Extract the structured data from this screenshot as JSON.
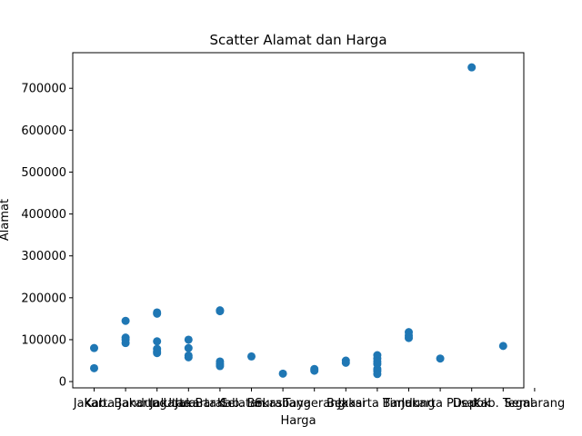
{
  "chart_data": {
    "type": "scatter",
    "title": "Scatter Alamat dan Harga",
    "xlabel": "Harga",
    "ylabel": "Alamat",
    "categories": [
      "Jakarta",
      "Kab. Bandung",
      "Jakarta Utara",
      "Jakarta Barat",
      "Jakarta Selatan",
      "Kab. Bekasi",
      "Surabaya",
      "Tangerang",
      "Bekasi",
      "Jakarta Timur",
      "Bandung",
      "Jakarta Pusat",
      "Depok",
      "Kab. Tegal",
      "Semarang"
    ],
    "ylim": [
      -15000,
      785000
    ],
    "yticks": [
      0,
      100000,
      200000,
      300000,
      400000,
      500000,
      600000,
      700000
    ],
    "ytick_labels": [
      "0",
      "100000",
      "200000",
      "300000",
      "400000",
      "500000",
      "600000",
      "700000"
    ],
    "grid": false,
    "color": "#1f77b4",
    "points": [
      {
        "x": "Jakarta",
        "y": 80000
      },
      {
        "x": "Jakarta",
        "y": 32000
      },
      {
        "x": "Kab. Bandung",
        "y": 145000
      },
      {
        "x": "Kab. Bandung",
        "y": 105000
      },
      {
        "x": "Kab. Bandung",
        "y": 100000
      },
      {
        "x": "Kab. Bandung",
        "y": 92000
      },
      {
        "x": "Jakarta Utara",
        "y": 165000
      },
      {
        "x": "Jakarta Utara",
        "y": 162000
      },
      {
        "x": "Jakarta Utara",
        "y": 96000
      },
      {
        "x": "Jakarta Utara",
        "y": 78000
      },
      {
        "x": "Jakarta Utara",
        "y": 72000
      },
      {
        "x": "Jakarta Utara",
        "y": 68000
      },
      {
        "x": "Jakarta Barat",
        "y": 100000
      },
      {
        "x": "Jakarta Barat",
        "y": 80000
      },
      {
        "x": "Jakarta Barat",
        "y": 62000
      },
      {
        "x": "Jakarta Barat",
        "y": 58000
      },
      {
        "x": "Jakarta Selatan",
        "y": 170000
      },
      {
        "x": "Jakarta Selatan",
        "y": 168000
      },
      {
        "x": "Jakarta Selatan",
        "y": 48000
      },
      {
        "x": "Jakarta Selatan",
        "y": 42000
      },
      {
        "x": "Jakarta Selatan",
        "y": 37000
      },
      {
        "x": "Kab. Bekasi",
        "y": 60000
      },
      {
        "x": "Surabaya",
        "y": 19000
      },
      {
        "x": "Tangerang",
        "y": 30000
      },
      {
        "x": "Tangerang",
        "y": 26000
      },
      {
        "x": "Bekasi",
        "y": 50000
      },
      {
        "x": "Bekasi",
        "y": 45000
      },
      {
        "x": "Jakarta Timur",
        "y": 63000
      },
      {
        "x": "Jakarta Timur",
        "y": 55000
      },
      {
        "x": "Jakarta Timur",
        "y": 48000
      },
      {
        "x": "Jakarta Timur",
        "y": 42000
      },
      {
        "x": "Jakarta Timur",
        "y": 30000
      },
      {
        "x": "Jakarta Timur",
        "y": 25000
      },
      {
        "x": "Jakarta Timur",
        "y": 18000
      },
      {
        "x": "Bandung",
        "y": 118000
      },
      {
        "x": "Bandung",
        "y": 110000
      },
      {
        "x": "Bandung",
        "y": 104000
      },
      {
        "x": "Jakarta Pusat",
        "y": 55000
      },
      {
        "x": "Depok",
        "y": 750000
      },
      {
        "x": "Kab. Tegal",
        "y": 85000
      }
    ]
  }
}
